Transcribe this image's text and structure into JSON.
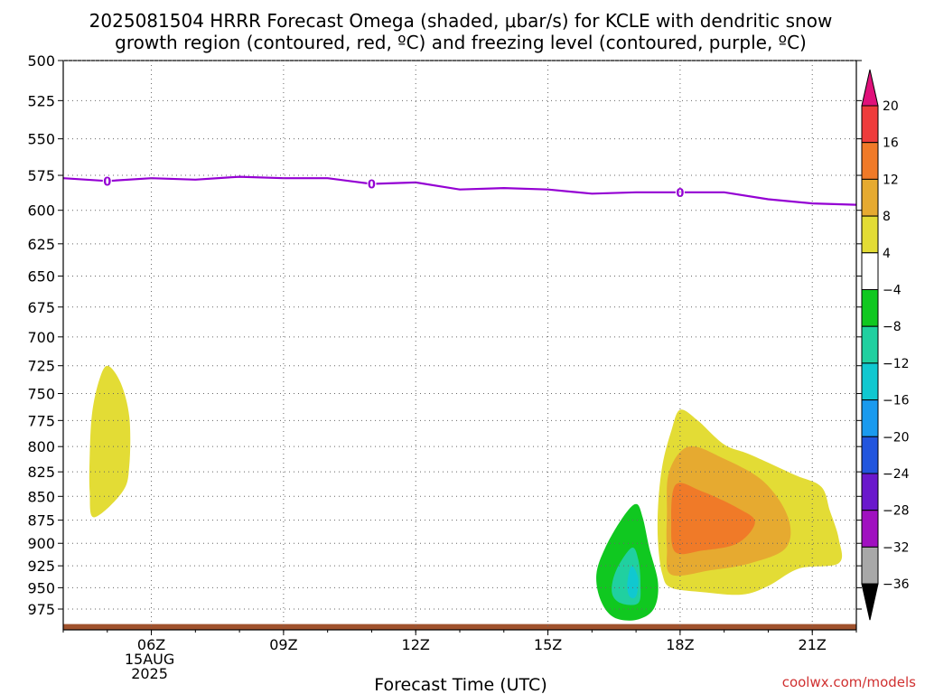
{
  "chart_data": {
    "type": "contour",
    "title": "2025081504 HRRR Forecast Omega (shaded, μbar/s) for KCLE with dendritic snow",
    "title_line2": "growth region (contoured, red, ºC) and freezing level (contoured, purple, ºC)",
    "xlabel": "Forecast Time (UTC)",
    "credit": "coolwx.com/models",
    "x_ticks": [
      {
        "hour": 6,
        "label": "06Z",
        "sub": [
          "15AUG",
          "2025"
        ]
      },
      {
        "hour": 9,
        "label": "09Z"
      },
      {
        "hour": 12,
        "label": "12Z"
      },
      {
        "hour": 15,
        "label": "15Z"
      },
      {
        "hour": 18,
        "label": "18Z"
      },
      {
        "hour": 21,
        "label": "21Z"
      }
    ],
    "xlim": [
      4,
      22
    ],
    "y_ticks": [
      500,
      525,
      550,
      575,
      600,
      625,
      650,
      675,
      700,
      725,
      750,
      775,
      800,
      825,
      850,
      875,
      900,
      925,
      950,
      975
    ],
    "ylim": [
      500,
      1000
    ],
    "y_scale": "log-pressure",
    "grid": true,
    "colorbar": {
      "ticks": [
        20,
        16,
        12,
        8,
        4,
        -4,
        -8,
        -12,
        -16,
        -20,
        -24,
        -28,
        -32,
        -36
      ],
      "bins": [
        {
          "range": [
            20,
            999
          ],
          "color": "#e0107a"
        },
        {
          "range": [
            16,
            20
          ],
          "color": "#ee3b3b"
        },
        {
          "range": [
            12,
            16
          ],
          "color": "#f07a28"
        },
        {
          "range": [
            8,
            12
          ],
          "color": "#e6aa30"
        },
        {
          "range": [
            4,
            8
          ],
          "color": "#e3dc35"
        },
        {
          "range": [
            -4,
            4
          ],
          "color": "#ffffff"
        },
        {
          "range": [
            -8,
            -4
          ],
          "color": "#10c820"
        },
        {
          "range": [
            -12,
            -8
          ],
          "color": "#20d0a0"
        },
        {
          "range": [
            -16,
            -12
          ],
          "color": "#10c8d0"
        },
        {
          "range": [
            -20,
            -16
          ],
          "color": "#1a9aee"
        },
        {
          "range": [
            -24,
            -20
          ],
          "color": "#2255dd"
        },
        {
          "range": [
            -28,
            -24
          ],
          "color": "#6a18cc"
        },
        {
          "range": [
            -32,
            -28
          ],
          "color": "#a010c0"
        },
        {
          "range": [
            -36,
            -32
          ],
          "color": "#a8a8a8"
        },
        {
          "range": [
            -999,
            -36
          ],
          "color": "#000000"
        }
      ]
    },
    "freezing_level": {
      "color": "#9400d3",
      "label": "0",
      "label_hours": [
        5,
        11,
        18
      ],
      "points": [
        [
          4,
          577
        ],
        [
          5,
          579
        ],
        [
          6,
          577
        ],
        [
          7,
          578
        ],
        [
          8,
          576
        ],
        [
          9,
          577
        ],
        [
          10,
          577
        ],
        [
          11,
          581
        ],
        [
          12,
          580
        ],
        [
          13,
          585
        ],
        [
          14,
          584
        ],
        [
          15,
          585
        ],
        [
          16,
          588
        ],
        [
          17,
          587
        ],
        [
          18,
          587
        ],
        [
          19,
          587
        ],
        [
          20,
          592
        ],
        [
          21,
          595
        ],
        [
          22,
          596
        ]
      ]
    },
    "omega_regions": [
      {
        "level": 4,
        "color": "#e3dc35",
        "points": [
          [
            4.7,
            872
          ],
          [
            4.6,
            845
          ],
          [
            4.6,
            810
          ],
          [
            4.65,
            770
          ],
          [
            4.8,
            740
          ],
          [
            5.0,
            725
          ],
          [
            5.3,
            740
          ],
          [
            5.5,
            772
          ],
          [
            5.5,
            818
          ],
          [
            5.35,
            845
          ],
          [
            4.7,
            872
          ]
        ]
      },
      {
        "level": 4,
        "color": "#e3dc35",
        "points": [
          [
            18.0,
            765
          ],
          [
            18.4,
            775
          ],
          [
            19.0,
            798
          ],
          [
            19.6,
            808
          ],
          [
            20.6,
            828
          ],
          [
            21.2,
            840
          ],
          [
            21.4,
            865
          ],
          [
            21.6,
            895
          ],
          [
            21.6,
            922
          ],
          [
            20.7,
            928
          ],
          [
            20.0,
            948
          ],
          [
            19.4,
            958
          ],
          [
            18.5,
            955
          ],
          [
            17.8,
            950
          ],
          [
            17.6,
            935
          ],
          [
            17.5,
            900
          ],
          [
            17.5,
            860
          ],
          [
            17.6,
            818
          ],
          [
            17.8,
            785
          ],
          [
            18.0,
            765
          ]
        ]
      },
      {
        "level": 8,
        "color": "#e6aa30",
        "points": [
          [
            17.8,
            935
          ],
          [
            17.7,
            905
          ],
          [
            17.7,
            870
          ],
          [
            17.75,
            825
          ],
          [
            18.2,
            800
          ],
          [
            19.0,
            812
          ],
          [
            19.9,
            835
          ],
          [
            20.45,
            872
          ],
          [
            20.4,
            905
          ],
          [
            19.6,
            922
          ],
          [
            18.7,
            930
          ],
          [
            17.8,
            935
          ]
        ]
      },
      {
        "level": 12,
        "color": "#f07a28",
        "points": [
          [
            17.9,
            910
          ],
          [
            17.8,
            880
          ],
          [
            17.9,
            838
          ],
          [
            18.5,
            845
          ],
          [
            19.3,
            862
          ],
          [
            19.7,
            877
          ],
          [
            19.3,
            900
          ],
          [
            18.5,
            908
          ],
          [
            17.9,
            910
          ]
        ]
      },
      {
        "level": -4,
        "color": "#10c820",
        "points": [
          [
            17.0,
            858
          ],
          [
            16.7,
            872
          ],
          [
            16.3,
            905
          ],
          [
            16.1,
            935
          ],
          [
            16.2,
            965
          ],
          [
            16.5,
            985
          ],
          [
            17.0,
            988
          ],
          [
            17.4,
            975
          ],
          [
            17.5,
            945
          ],
          [
            17.3,
            905
          ],
          [
            17.15,
            872
          ],
          [
            17.0,
            858
          ]
        ]
      },
      {
        "level": -8,
        "color": "#20d0a0",
        "points": [
          [
            16.9,
            905
          ],
          [
            16.55,
            930
          ],
          [
            16.45,
            955
          ],
          [
            16.65,
            968
          ],
          [
            17.05,
            968
          ],
          [
            17.1,
            945
          ],
          [
            17.05,
            918
          ],
          [
            16.9,
            905
          ]
        ]
      },
      {
        "level": -12,
        "color": "#10c8d0",
        "points": [
          [
            16.9,
            925
          ],
          [
            16.8,
            945
          ],
          [
            16.85,
            960
          ],
          [
            17.0,
            960
          ],
          [
            17.05,
            940
          ],
          [
            16.9,
            925
          ]
        ]
      }
    ],
    "terrain": {
      "color": "#a0522d",
      "surface_hpa": 993
    }
  }
}
